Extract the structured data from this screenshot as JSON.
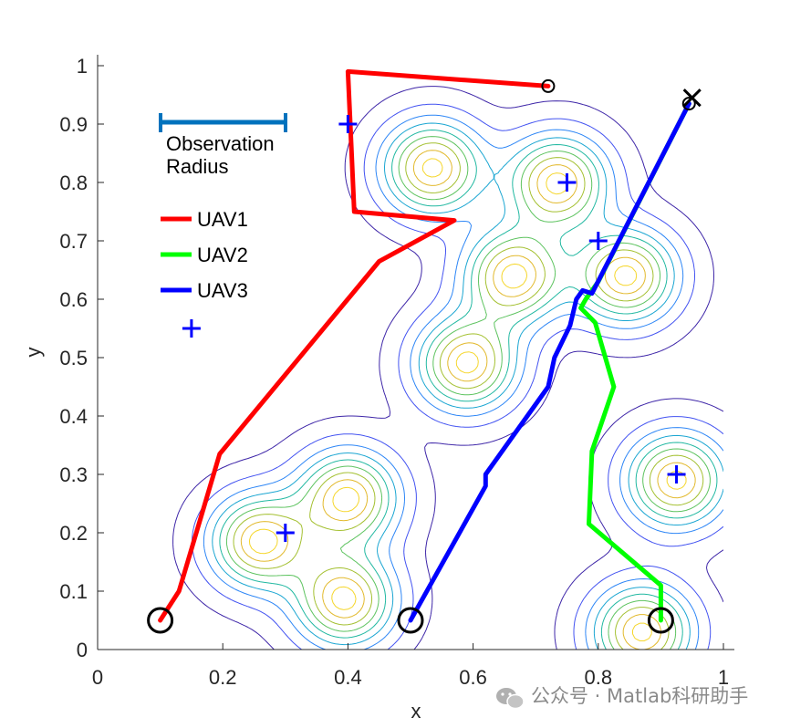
{
  "chart_data": {
    "type": "line",
    "xlabel": "x",
    "ylabel": "y",
    "xlim": [
      0,
      1
    ],
    "ylim": [
      0,
      1
    ],
    "x_ticks": [
      "0",
      "0.2",
      "0.4",
      "0.6",
      "0.8",
      "1"
    ],
    "y_ticks": [
      "0",
      "0.1",
      "0.2",
      "0.3",
      "0.4",
      "0.5",
      "0.6",
      "0.7",
      "0.8",
      "0.9",
      "1"
    ],
    "annotation": {
      "line1": "Observation",
      "line2": "Radius",
      "color": "#0072BD"
    },
    "series": [
      {
        "name": "UAV1",
        "color": "#FF0000",
        "points": [
          [
            0.1,
            0.05
          ],
          [
            0.13,
            0.1
          ],
          [
            0.195,
            0.335
          ],
          [
            0.45,
            0.665
          ],
          [
            0.57,
            0.735
          ],
          [
            0.41,
            0.75
          ],
          [
            0.4,
            0.99
          ],
          [
            0.72,
            0.965
          ]
        ]
      },
      {
        "name": "UAV2",
        "color": "#00FF00",
        "points": [
          [
            0.9,
            0.05
          ],
          [
            0.9,
            0.11
          ],
          [
            0.785,
            0.215
          ],
          [
            0.79,
            0.34
          ],
          [
            0.825,
            0.45
          ],
          [
            0.795,
            0.56
          ],
          [
            0.772,
            0.585
          ],
          [
            0.78,
            0.6
          ],
          [
            0.8,
            0.63
          ],
          [
            0.945,
            0.935
          ]
        ]
      },
      {
        "name": "UAV3",
        "color": "#0000FF",
        "points": [
          [
            0.5,
            0.05
          ],
          [
            0.62,
            0.28
          ],
          [
            0.62,
            0.3
          ],
          [
            0.72,
            0.45
          ],
          [
            0.73,
            0.5
          ],
          [
            0.755,
            0.555
          ],
          [
            0.765,
            0.6
          ],
          [
            0.775,
            0.615
          ],
          [
            0.79,
            0.61
          ],
          [
            0.945,
            0.935
          ]
        ]
      }
    ],
    "targets": [
      [
        0.4,
        0.9
      ],
      [
        0.75,
        0.8
      ],
      [
        0.8,
        0.7
      ],
      [
        0.15,
        0.55
      ],
      [
        0.3,
        0.2
      ],
      [
        0.925,
        0.3
      ]
    ],
    "start_markers": [
      [
        0.1,
        0.05
      ],
      [
        0.5,
        0.05
      ],
      [
        0.9,
        0.05
      ]
    ],
    "end_markers": [
      [
        0.72,
        0.965
      ],
      [
        0.945,
        0.935
      ]
    ],
    "cross_marker": [
      0.95,
      0.945
    ],
    "contour_peaks": [
      {
        "x": 0.535,
        "y": 0.825
      },
      {
        "x": 0.735,
        "y": 0.8
      },
      {
        "x": 0.665,
        "y": 0.64
      },
      {
        "x": 0.845,
        "y": 0.64
      },
      {
        "x": 0.59,
        "y": 0.49
      },
      {
        "x": 0.4,
        "y": 0.26
      },
      {
        "x": 0.26,
        "y": 0.185
      },
      {
        "x": 0.395,
        "y": 0.085
      },
      {
        "x": 0.925,
        "y": 0.29
      },
      {
        "x": 0.87,
        "y": 0.03
      }
    ],
    "contour_colormap": [
      "#3E26A8",
      "#4353F1",
      "#2D86F6",
      "#1BA6D2",
      "#21B8A1",
      "#5DC35F",
      "#A4C031",
      "#E2B92C",
      "#F5D62A"
    ]
  },
  "watermark": "公众号 · Matlab科研助手"
}
